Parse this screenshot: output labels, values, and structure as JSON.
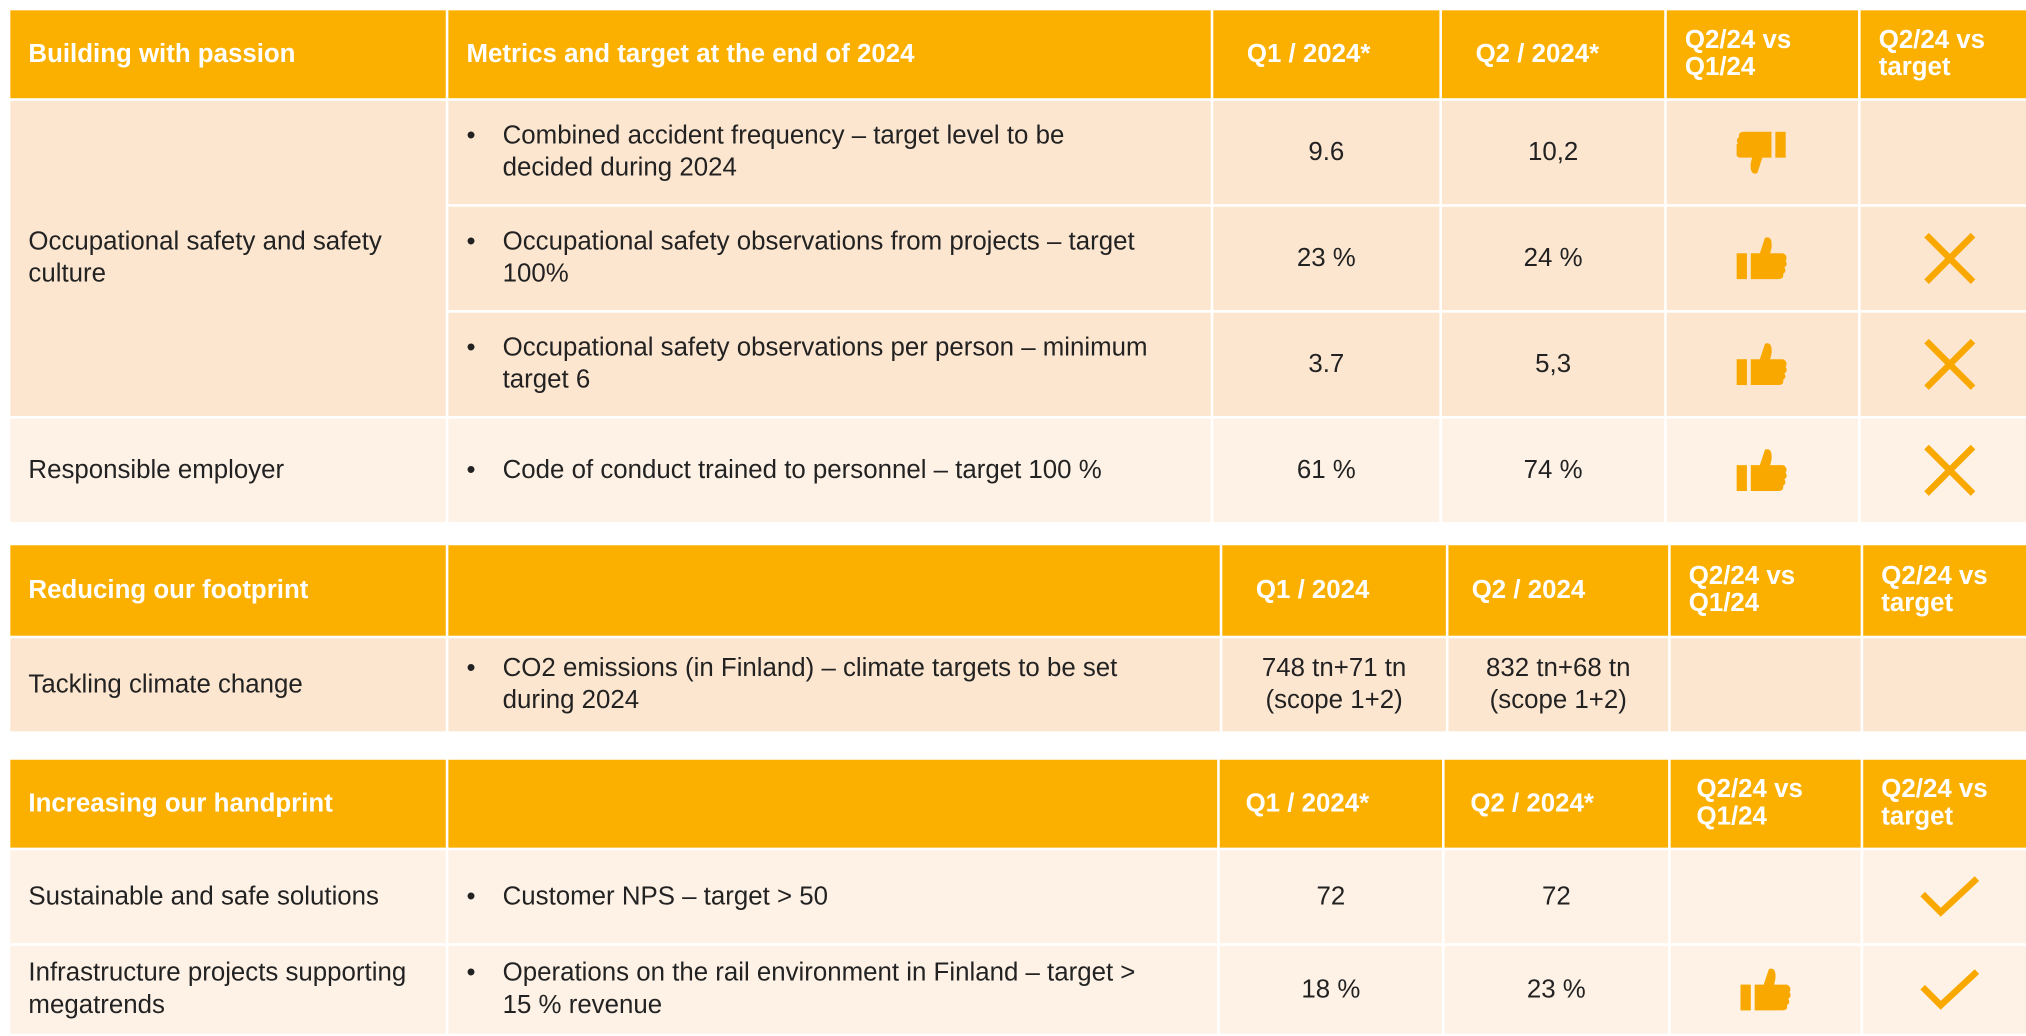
{
  "sections": [
    {
      "header": [
        "Building with passion",
        "Metrics and target at the end of 2024",
        "Q1 / 2024*",
        "Q2 / 2024*",
        "Q2/24 vs Q1/24",
        "Q2/24 vs target"
      ],
      "rows": [
        {
          "group": "Occupational safety and safety culture",
          "metric": "Combined accident frequency – target level to be decided during 2024",
          "q1": "9.6",
          "q2": "10,2"
        },
        {
          "metric": "Occupational safety observations from projects – target 100%",
          "q1": "23 %",
          "q2": "24 %"
        },
        {
          "metric": "Occupational safety observations per person – minimum target 6",
          "q1": "3.7",
          "q2": "5,3"
        },
        {
          "group": "Responsible employer",
          "metric": "Code of conduct trained to personnel – target 100 %",
          "q1": "61 %",
          "q2": "74 %"
        }
      ]
    },
    {
      "header": [
        "Reducing our footprint",
        "Q1 / 2024",
        "Q2 / 2024",
        "Q2/24 vs Q1/24",
        "Q2/24 vs target"
      ],
      "rows": [
        {
          "group": "Tackling climate change",
          "metric": "CO2 emissions (in Finland) – climate targets to be set during 2024",
          "q1": "748 tn+71 tn (scope 1+2)",
          "q2": "832 tn+68 tn (scope 1+2)"
        }
      ]
    },
    {
      "header": [
        "Increasing our handprint",
        "Q1 / 2024*",
        "Q2 / 2024*",
        "Q2/24 vs Q1/24",
        "Q2/24 vs target"
      ],
      "rows": [
        {
          "group": "Sustainable and safe solutions",
          "metric": "Customer NPS – target > 50",
          "q1": "72",
          "q2": "72"
        },
        {
          "group": "Infrastructure projects supporting megatrends",
          "metric": "Operations on the rail environment  in Finland – target > 15 % revenue",
          "q1": "18 %",
          "q2": "23 %"
        }
      ]
    }
  ]
}
